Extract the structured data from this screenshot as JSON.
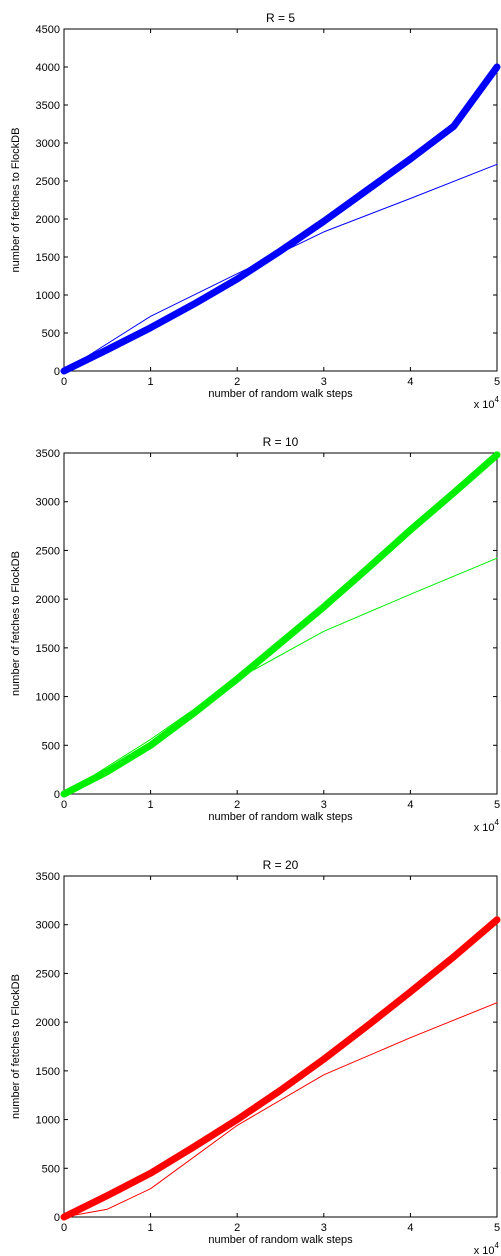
{
  "chart_data": [
    {
      "type": "line",
      "title": "R = 5",
      "xlabel": "number of random walk steps",
      "ylabel": "number of fetches to FlockDB",
      "x_multiplier": "x 10",
      "x_multiplier_exp": "4",
      "xlim": [
        0,
        5
      ],
      "ylim": [
        0,
        4500
      ],
      "xticks": [
        "0",
        "1",
        "2",
        "3",
        "4",
        "5"
      ],
      "yticks": [
        "0",
        "500",
        "1000",
        "1500",
        "2000",
        "2500",
        "3000",
        "3500",
        "4000",
        "4500"
      ],
      "grid": false,
      "series": [
        {
          "color": "#0000ff",
          "width": "thick",
          "x": [
            0,
            0.5,
            1,
            1.5,
            2,
            2.5,
            3,
            3.5,
            4,
            4.5,
            5
          ],
          "y": [
            0,
            280,
            570,
            880,
            1210,
            1580,
            1970,
            2380,
            2790,
            3220,
            4000
          ]
        },
        {
          "color": "#0000ff",
          "width": "thin",
          "x": [
            0,
            1,
            2,
            3,
            4,
            5
          ],
          "y": [
            0,
            720,
            1280,
            1830,
            2270,
            2720
          ]
        }
      ]
    },
    {
      "type": "line",
      "title": "R = 10",
      "xlabel": "number of random walk steps",
      "ylabel": "number of fetches to FlockDB",
      "x_multiplier": "x 10",
      "x_multiplier_exp": "4",
      "xlim": [
        0,
        5
      ],
      "ylim": [
        0,
        3500
      ],
      "xticks": [
        "0",
        "1",
        "2",
        "3",
        "4",
        "5"
      ],
      "yticks": [
        "0",
        "500",
        "1000",
        "1500",
        "2000",
        "2500",
        "3000",
        "3500"
      ],
      "grid": false,
      "series": [
        {
          "color": "#00ee00",
          "width": "thick",
          "x": [
            0,
            0.5,
            1,
            1.5,
            2,
            2.5,
            3,
            3.5,
            4,
            4.5,
            5
          ],
          "y": [
            0,
            230,
            500,
            830,
            1180,
            1550,
            1920,
            2310,
            2710,
            3090,
            3480
          ]
        },
        {
          "color": "#00ee00",
          "width": "thin",
          "x": [
            0,
            1,
            2,
            3,
            4,
            5
          ],
          "y": [
            0,
            560,
            1180,
            1670,
            2050,
            2420
          ]
        }
      ]
    },
    {
      "type": "line",
      "title": "R = 20",
      "xlabel": "number of random walk steps",
      "ylabel": "number of fetches to FlockDB",
      "x_multiplier": "x 10",
      "x_multiplier_exp": "4",
      "xlim": [
        0,
        5
      ],
      "ylim": [
        0,
        3500
      ],
      "xticks": [
        "0",
        "1",
        "2",
        "3",
        "4",
        "5"
      ],
      "yticks": [
        "0",
        "500",
        "1000",
        "1500",
        "2000",
        "2500",
        "3000",
        "3500"
      ],
      "grid": false,
      "series": [
        {
          "color": "#ff0000",
          "width": "thick",
          "x": [
            0,
            0.5,
            1,
            1.5,
            2,
            2.5,
            3,
            3.5,
            4,
            4.5,
            5
          ],
          "y": [
            0,
            220,
            450,
            720,
            1000,
            1300,
            1620,
            1960,
            2310,
            2670,
            3050
          ]
        },
        {
          "color": "#ff0000",
          "width": "thin",
          "x": [
            0,
            0.5,
            1,
            2,
            3,
            4,
            5
          ],
          "y": [
            0,
            80,
            290,
            940,
            1460,
            1840,
            2200
          ]
        }
      ]
    }
  ]
}
